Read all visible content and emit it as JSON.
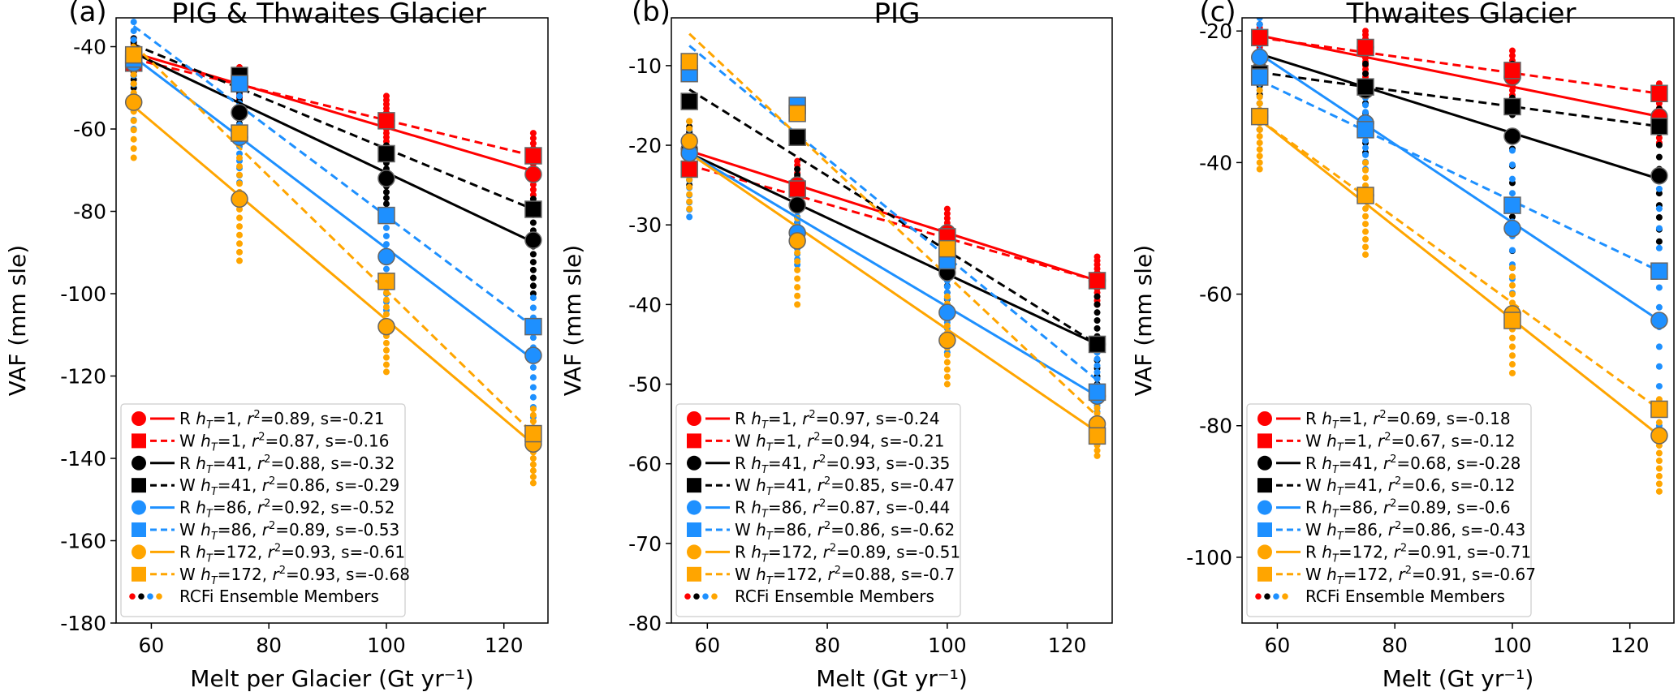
{
  "colors": {
    "R1": "#ff0000",
    "R41": "#000000",
    "R86": "#1e90ff",
    "R172": "#ffa500",
    "marker_edge": "#666666"
  },
  "legend_common": {
    "ensemble_label": "RCFi Ensemble Members"
  },
  "chart_data": [
    {
      "type": "line",
      "panel_label": "(a)",
      "title": "PIG  & Thwaites Glacier",
      "xlabel": "Melt per Glacier (Gt yr⁻¹)",
      "ylabel": "VAF (mm sle)",
      "xlim": [
        54,
        127.5
      ],
      "ylim": [
        -180,
        -33
      ],
      "xticks": [
        60,
        80,
        100,
        120
      ],
      "yticks": [
        -180,
        -160,
        -140,
        -120,
        -100,
        -80,
        -60,
        -40
      ],
      "x": [
        57,
        75,
        100,
        125
      ],
      "legend_position": "lower-left",
      "series": [
        {
          "key": "R1",
          "kind": "R",
          "values": [
            -43,
            -49,
            -58,
            -71
          ],
          "fit": [
            -41.5,
            -70.2
          ],
          "legend": {
            "prefix": "R",
            "h": "1",
            "r2": "0.89",
            "s": "-0.21"
          },
          "ens": [
            [
              -38,
              -47
            ],
            [
              -45,
              -53
            ],
            [
              -52,
              -64
            ],
            [
              -61,
              -76
            ]
          ]
        },
        {
          "key": "W1",
          "kind": "W",
          "values": [
            -44,
            -49,
            -58,
            -66.5
          ],
          "fit": [
            -43,
            -66.5
          ],
          "legend": {
            "prefix": "W",
            "h": "1",
            "r2": "0.87",
            "s": "-0.16"
          }
        },
        {
          "key": "R41",
          "kind": "R",
          "values": [
            -44,
            -56,
            -72,
            -87
          ],
          "fit": [
            -41.5,
            -87.5
          ],
          "legend": {
            "prefix": "R",
            "h": "41",
            "r2": "0.88",
            "s": "-0.32"
          },
          "ens": [
            [
              -38,
              -50
            ],
            [
              -50,
              -63
            ],
            [
              -64,
              -81
            ],
            [
              -77,
              -100
            ]
          ]
        },
        {
          "key": "W41",
          "kind": "W",
          "values": [
            -43,
            -47,
            -66,
            -79.5
          ],
          "fit": [
            -39.5,
            -79.5
          ],
          "legend": {
            "prefix": "W",
            "h": "41",
            "r2": "0.86",
            "s": "-0.29"
          }
        },
        {
          "key": "R86",
          "kind": "R",
          "values": [
            -44,
            -62,
            -91,
            -115
          ],
          "fit": [
            -42.5,
            -116
          ],
          "legend": {
            "prefix": "R",
            "h": "86",
            "r2": "0.92",
            "s": "-0.52"
          },
          "ens": [
            [
              -34,
              -60
            ],
            [
              -52,
              -73
            ],
            [
              -80,
              -104
            ],
            [
              -101,
              -130
            ]
          ]
        },
        {
          "key": "W86",
          "kind": "W",
          "values": [
            -43,
            -49,
            -81,
            -108
          ],
          "fit": [
            -35,
            -108
          ],
          "legend": {
            "prefix": "W",
            "h": "86",
            "r2": "0.89",
            "s": "-0.53"
          }
        },
        {
          "key": "R172",
          "kind": "R",
          "values": [
            -53.5,
            -77,
            -108,
            -136.5
          ],
          "fit": [
            -54.5,
            -136.5
          ],
          "legend": {
            "prefix": "R",
            "h": "172",
            "r2": "0.93",
            "s": "-0.61"
          },
          "ens": [
            [
              -40,
              -67
            ],
            [
              -67,
              -92
            ],
            [
              -98,
              -119
            ],
            [
              -128,
              -146
            ]
          ]
        },
        {
          "key": "W172",
          "kind": "W",
          "values": [
            -42,
            -61,
            -97,
            -134
          ],
          "fit": [
            -39.5,
            -134
          ],
          "legend": {
            "prefix": "W",
            "h": "172",
            "r2": "0.93",
            "s": "-0.68"
          }
        }
      ]
    },
    {
      "type": "line",
      "panel_label": "(b)",
      "title": "PIG",
      "xlabel": "Melt (Gt yr⁻¹)",
      "ylabel": "VAF (mm sle)",
      "xlim": [
        54,
        127.5
      ],
      "ylim": [
        -80,
        -4
      ],
      "xticks": [
        60,
        80,
        100,
        120
      ],
      "yticks": [
        -80,
        -70,
        -60,
        -50,
        -40,
        -30,
        -20,
        -10
      ],
      "x": [
        57,
        75,
        100,
        125
      ],
      "legend_position": "lower-left",
      "series": [
        {
          "key": "R1",
          "kind": "R",
          "values": [
            -21,
            -25,
            -31,
            -37
          ],
          "fit": [
            -20.7,
            -37
          ],
          "legend": {
            "prefix": "R",
            "h": "1",
            "r2": "0.97",
            "s": "-0.24"
          },
          "ens": [
            [
              -18,
              -23
            ],
            [
              -22,
              -28
            ],
            [
              -28,
              -35
            ],
            [
              -34,
              -40
            ]
          ]
        },
        {
          "key": "W1",
          "kind": "W",
          "values": [
            -23,
            -25.5,
            -31.5,
            -37
          ],
          "fit": [
            -22.5,
            -37
          ],
          "legend": {
            "prefix": "W",
            "h": "1",
            "r2": "0.94",
            "s": "-0.21"
          }
        },
        {
          "key": "R41",
          "kind": "R",
          "values": [
            -20.5,
            -27.5,
            -36,
            -45
          ],
          "fit": [
            -21,
            -45
          ],
          "legend": {
            "prefix": "R",
            "h": "41",
            "r2": "0.93",
            "s": "-0.35"
          },
          "ens": [
            [
              -17,
              -25
            ],
            [
              -23,
              -32
            ],
            [
              -31,
              -41
            ],
            [
              -39,
              -51
            ]
          ]
        },
        {
          "key": "W41",
          "kind": "W",
          "values": [
            -14.5,
            -19,
            -34,
            -45
          ],
          "fit": [
            -13,
            -45
          ],
          "legend": {
            "prefix": "W",
            "h": "41",
            "r2": "0.85",
            "s": "-0.47"
          }
        },
        {
          "key": "R86",
          "kind": "R",
          "values": [
            -21,
            -31,
            -41,
            -51.5
          ],
          "fit": [
            -21,
            -51.5
          ],
          "legend": {
            "prefix": "R",
            "h": "86",
            "r2": "0.87",
            "s": "-0.44"
          },
          "ens": [
            [
              -18,
              -29
            ],
            [
              -27,
              -35
            ],
            [
              -37,
              -46
            ],
            [
              -46,
              -56
            ]
          ]
        },
        {
          "key": "W86",
          "kind": "W",
          "values": [
            -11,
            -15,
            -34.5,
            -51
          ],
          "fit": [
            -7.5,
            -49.5
          ],
          "legend": {
            "prefix": "W",
            "h": "86",
            "r2": "0.86",
            "s": "-0.62"
          }
        },
        {
          "key": "R172",
          "kind": "R",
          "values": [
            -19.5,
            -32,
            -44.5,
            -55
          ],
          "fit": [
            -21,
            -56
          ],
          "legend": {
            "prefix": "R",
            "h": "172",
            "r2": "0.89",
            "s": "-0.51"
          },
          "ens": [
            [
              -17,
              -28
            ],
            [
              -27,
              -40
            ],
            [
              -39,
              -50
            ],
            [
              -51,
              -59
            ]
          ]
        },
        {
          "key": "W172",
          "kind": "W",
          "values": [
            -9.5,
            -16,
            -33,
            -56.5
          ],
          "fit": [
            -6,
            -54
          ],
          "legend": {
            "prefix": "W",
            "h": "172",
            "r2": "0.88",
            "s": "-0.7"
          }
        }
      ]
    },
    {
      "type": "line",
      "panel_label": "(c)",
      "title": "Thwaites Glacier",
      "xlabel": "Melt (Gt yr⁻¹)",
      "ylabel": "VAF (mm sle)",
      "xlim": [
        54,
        127.5
      ],
      "ylim": [
        -110,
        -18
      ],
      "xticks": [
        60,
        80,
        100,
        120
      ],
      "yticks": [
        -100,
        -80,
        -60,
        -40,
        -20
      ],
      "x": [
        57,
        75,
        100,
        125
      ],
      "legend_position": "lower-left",
      "series": [
        {
          "key": "R1",
          "kind": "R",
          "values": [
            -21,
            -22.5,
            -27,
            -33
          ],
          "fit": [
            -20.7,
            -33
          ],
          "legend": {
            "prefix": "R",
            "h": "1",
            "r2": "0.69",
            "s": "-0.18"
          },
          "ens": [
            [
              -19,
              -25
            ],
            [
              -20,
              -27
            ],
            [
              -23,
              -32
            ],
            [
              -28,
              -37
            ]
          ]
        },
        {
          "key": "W1",
          "kind": "W",
          "values": [
            -21,
            -22.5,
            -26,
            -29.5
          ],
          "fit": [
            -21,
            -29.5
          ],
          "legend": {
            "prefix": "W",
            "h": "1",
            "r2": "0.67",
            "s": "-0.12"
          }
        },
        {
          "key": "R41",
          "kind": "R",
          "values": [
            -26,
            -29,
            -36,
            -42
          ],
          "fit": [
            -23.5,
            -42.5
          ],
          "legend": {
            "prefix": "R",
            "h": "41",
            "r2": "0.68",
            "s": "-0.28"
          },
          "ens": [
            [
              -19,
              -35
            ],
            [
              -22,
              -40
            ],
            [
              -25,
              -56
            ],
            [
              -30,
              -52
            ]
          ]
        },
        {
          "key": "W41",
          "kind": "W",
          "values": [
            -26.5,
            -28.5,
            -31.5,
            -34.5
          ],
          "fit": [
            -26.3,
            -34.5
          ],
          "legend": {
            "prefix": "W",
            "h": "41",
            "r2": "0.6",
            "s": "-0.12"
          }
        },
        {
          "key": "R86",
          "kind": "R",
          "values": [
            -24,
            -34,
            -50,
            -64
          ],
          "fit": [
            -23.5,
            -64
          ],
          "legend": {
            "prefix": "R",
            "h": "86",
            "r2": "0.89",
            "s": "-0.6"
          },
          "ens": [
            [
              -18,
              -30
            ],
            [
              -28,
              -41
            ],
            [
              -36,
              -62
            ],
            [
              -44,
              -80
            ]
          ]
        },
        {
          "key": "W86",
          "kind": "W",
          "values": [
            -27,
            -35,
            -46.5,
            -56.5
          ],
          "fit": [
            -27.5,
            -56.5
          ],
          "legend": {
            "prefix": "W",
            "h": "86",
            "r2": "0.86",
            "s": "-0.43"
          }
        },
        {
          "key": "R172",
          "kind": "R",
          "values": [
            -33,
            -45,
            -63,
            -81.5
          ],
          "fit": [
            -33.5,
            -81.5
          ],
          "legend": {
            "prefix": "R",
            "h": "172",
            "r2": "0.91",
            "s": "-0.71"
          },
          "ens": [
            [
              -29,
              -41
            ],
            [
              -40,
              -54
            ],
            [
              -56,
              -72
            ],
            [
              -76,
              -90
            ]
          ]
        },
        {
          "key": "W172",
          "kind": "W",
          "values": [
            -33,
            -45,
            -64,
            -77.5
          ],
          "fit": [
            -33.5,
            -77.5
          ],
          "legend": {
            "prefix": "W",
            "h": "172",
            "r2": "0.91",
            "s": "-0.67"
          }
        }
      ]
    }
  ]
}
